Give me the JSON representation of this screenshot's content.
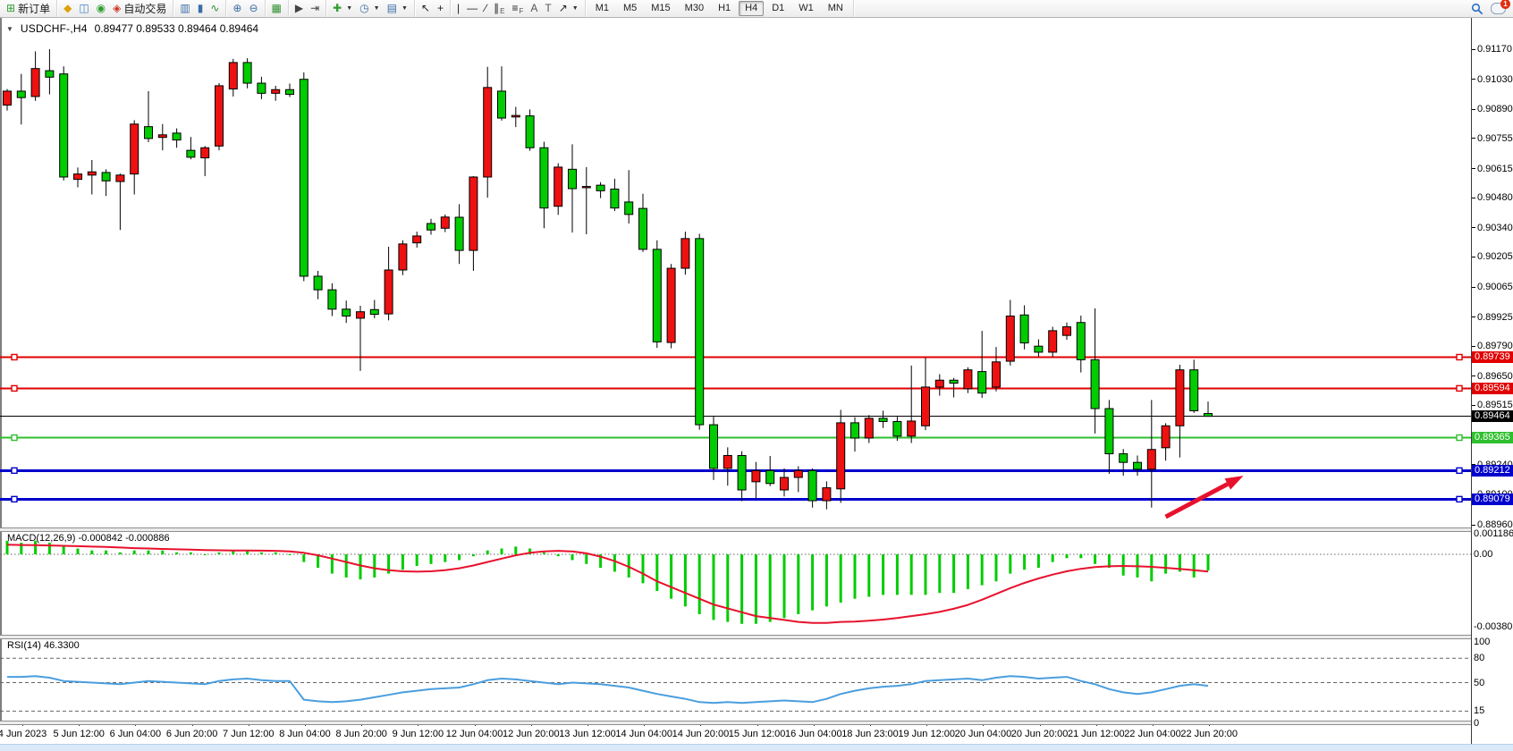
{
  "toolbar": {
    "groups": [
      {
        "name": "trade",
        "items": [
          {
            "name": "new-order-button",
            "icon": "new-order-icon",
            "glyph": "⊞",
            "color": "#2f9e2f",
            "label": "新订单"
          }
        ]
      },
      {
        "name": "terminal",
        "items": [
          {
            "name": "styles-button",
            "icon": "styles-icon",
            "glyph": "◆",
            "color": "#dca20a"
          },
          {
            "name": "profiles-button",
            "icon": "profiles-icon",
            "glyph": "◫",
            "color": "#3f7fbf"
          },
          {
            "name": "alerts-button",
            "icon": "signal-icon",
            "glyph": "◉",
            "color": "#2f9e2f"
          },
          {
            "name": "autotrading-button",
            "icon": "autotrading-icon",
            "glyph": "◈",
            "color": "#cc3322",
            "label": "自动交易"
          }
        ]
      },
      {
        "name": "chart-types",
        "items": [
          {
            "name": "bar-chart-button",
            "icon": "bar-chart-icon",
            "glyph": "▥",
            "color": "#3a6ea5"
          },
          {
            "name": "candlestick-chart-button",
            "icon": "candlestick-icon",
            "glyph": "▮",
            "color": "#3a6ea5"
          },
          {
            "name": "line-chart-button",
            "icon": "line-chart-icon",
            "glyph": "∿",
            "color": "#2f8f2f"
          }
        ]
      },
      {
        "name": "zoom",
        "items": [
          {
            "name": "zoom-in-button",
            "icon": "zoom-in-icon",
            "glyph": "⊕",
            "color": "#3a6ea5"
          },
          {
            "name": "zoom-out-button",
            "icon": "zoom-out-icon",
            "glyph": "⊖",
            "color": "#3a6ea5"
          }
        ]
      },
      {
        "name": "windows",
        "items": [
          {
            "name": "tile-windows-button",
            "icon": "tile-windows-icon",
            "glyph": "▦",
            "color": "#2f8f2f"
          }
        ]
      },
      {
        "name": "scroll",
        "items": [
          {
            "name": "auto-scroll-button",
            "icon": "auto-scroll-icon",
            "glyph": "▶",
            "color": "#444444"
          },
          {
            "name": "chart-shift-button",
            "icon": "chart-shift-icon",
            "glyph": "⇥",
            "color": "#444444"
          }
        ]
      },
      {
        "name": "objects",
        "items": [
          {
            "name": "indicators-button",
            "icon": "indicators-icon",
            "glyph": "✚",
            "color": "#2f9e2f",
            "caret": true
          },
          {
            "name": "periods-button",
            "icon": "clock-icon",
            "glyph": "◷",
            "color": "#3a6ea5",
            "caret": true
          },
          {
            "name": "templates-button",
            "icon": "template-icon",
            "glyph": "▤",
            "color": "#3a6ea5",
            "caret": true
          }
        ]
      },
      {
        "name": "cursors",
        "items": [
          {
            "name": "cursor-button",
            "icon": "cursor-icon",
            "glyph": "↖",
            "color": "#222222"
          },
          {
            "name": "crosshair-button",
            "icon": "crosshair-icon",
            "glyph": "+",
            "color": "#222222"
          }
        ]
      },
      {
        "name": "drawing",
        "items": [
          {
            "name": "vertical-line-button",
            "icon": "vertical-line-icon",
            "glyph": "|",
            "color": "#222222"
          },
          {
            "name": "horizontal-line-button",
            "icon": "horizontal-line-icon",
            "glyph": "—",
            "color": "#222222"
          },
          {
            "name": "trendline-button",
            "icon": "trendline-icon",
            "glyph": "∕",
            "color": "#222222"
          },
          {
            "name": "equidistant-channel-button",
            "icon": "channel-icon",
            "glyph": "∥",
            "color": "#222222",
            "sub": "E"
          },
          {
            "name": "fibonacci-button",
            "icon": "fibonacci-icon",
            "glyph": "≡",
            "color": "#222222",
            "sub": "F"
          },
          {
            "name": "text-button",
            "icon": "text-icon",
            "glyph": "A",
            "color": "#555555"
          },
          {
            "name": "label-button",
            "icon": "label-icon",
            "glyph": "T",
            "color": "#555555"
          },
          {
            "name": "arrows-menu-button",
            "icon": "arrows-icon",
            "glyph": "↗",
            "color": "#222222",
            "caret": true
          }
        ]
      }
    ],
    "timeframes": [
      "M1",
      "M5",
      "M15",
      "M30",
      "H1",
      "H4",
      "D1",
      "W1",
      "MN"
    ],
    "active_timeframe": "H4",
    "notifications_badge": "1"
  },
  "chart": {
    "collapse_arrow": "▼",
    "title": "USDCHF-,H4",
    "ohlc_display": "0.89477 0.89533 0.89464 0.89464"
  },
  "price_axis": {
    "ticks": [
      0.9117,
      0.9103,
      0.9089,
      0.90755,
      0.90615,
      0.9048,
      0.9034,
      0.90205,
      0.90065,
      0.89925,
      0.8979,
      0.8965,
      0.89515,
      0.8924,
      0.891,
      0.8896
    ],
    "badges": [
      {
        "text": "0.89739",
        "price": 0.89739,
        "bg": "#e00000"
      },
      {
        "text": "0.89594",
        "price": 0.89594,
        "bg": "#e00000"
      },
      {
        "text": "0.89464",
        "price": 0.89464,
        "bg": "#000000"
      },
      {
        "text": "0.89365",
        "price": 0.89365,
        "bg": "#2fbf2f"
      },
      {
        "text": "0.89212",
        "price": 0.89212,
        "bg": "#0000cc"
      },
      {
        "text": "0.89079",
        "price": 0.89079,
        "bg": "#0000cc"
      }
    ]
  },
  "macd_panel": {
    "label": "MACD(12,26,9)",
    "values_text": "-0.000842 -0.000886",
    "axis_max": "0.001186",
    "axis_zero": "0.00",
    "axis_min": "-0.003802"
  },
  "rsi_panel": {
    "label": "RSI(14)",
    "value_text": "46.3300",
    "levels": [
      100,
      80,
      50,
      15,
      0
    ],
    "dashed_levels": [
      80,
      50,
      15
    ]
  },
  "chart_data": {
    "type": "candlestick",
    "symbol": "USDCHF-",
    "timeframe": "H4",
    "price_top": 0.9117,
    "price_bottom": 0.8896,
    "up_color": "#ee1111",
    "down_color": "#00cc00",
    "time_labels": [
      "4 Jun 2023",
      "5 Jun 12:00",
      "6 Jun 04:00",
      "6 Jun 20:00",
      "7 Jun 12:00",
      "8 Jun 04:00",
      "8 Jun 20:00",
      "9 Jun 12:00",
      "12 Jun 04:00",
      "12 Jun 20:00",
      "13 Jun 12:00",
      "14 Jun 04:00",
      "14 Jun 20:00",
      "15 Jun 12:00",
      "16 Jun 04:00",
      "18 Jun 23:00",
      "19 Jun 12:00",
      "20 Jun 04:00",
      "20 Jun 20:00",
      "21 Jun 12:00",
      "22 Jun 04:00",
      "22 Jun 20:00"
    ],
    "candles": {
      "open": [
        0.9091,
        0.90975,
        0.9095,
        0.9107,
        0.91055,
        0.90565,
        0.90585,
        0.90597,
        0.90555,
        0.9059,
        0.9081,
        0.9076,
        0.9078,
        0.907,
        0.90665,
        0.9072,
        0.90985,
        0.91108,
        0.91012,
        0.90965,
        0.90982,
        0.9103,
        0.90115,
        0.90052,
        0.89962,
        0.8992,
        0.8996,
        0.8994,
        0.90144,
        0.9027,
        0.9036,
        0.90338,
        0.90389,
        0.90235,
        0.90576,
        0.90975,
        0.90855,
        0.9086,
        0.90712,
        0.9044,
        0.90612,
        0.9053,
        0.90538,
        0.9052,
        0.9046,
        0.9043,
        0.9024,
        0.89807,
        0.90152,
        0.9029,
        0.89425,
        0.89222,
        0.89282,
        0.8916,
        0.89212,
        0.89122,
        0.8918,
        0.89212,
        0.89072,
        0.89127,
        0.89434,
        0.89363,
        0.89455,
        0.8944,
        0.89372,
        0.8942,
        0.896,
        0.89632,
        0.89592,
        0.89672,
        0.896,
        0.8972,
        0.89935,
        0.8979,
        0.89762,
        0.8984,
        0.899,
        0.89727,
        0.895,
        0.8929,
        0.8925,
        0.89218,
        0.89318,
        0.8942,
        0.8968,
        0.89477
      ],
      "high": [
        0.90985,
        0.91055,
        0.9116,
        0.9117,
        0.9109,
        0.9062,
        0.90655,
        0.90612,
        0.90592,
        0.9084,
        0.90975,
        0.90822,
        0.90802,
        0.90762,
        0.9072,
        0.91012,
        0.91125,
        0.91128,
        0.91042,
        0.91,
        0.9101,
        0.91062,
        0.9014,
        0.90082,
        0.90002,
        0.89978,
        0.90005,
        0.90252,
        0.90282,
        0.90322,
        0.90382,
        0.90402,
        0.9045,
        0.9058,
        0.91088,
        0.9109,
        0.90902,
        0.9089,
        0.9074,
        0.9064,
        0.90728,
        0.90622,
        0.90552,
        0.90568,
        0.90608,
        0.90498,
        0.90282,
        0.90172,
        0.90322,
        0.90312,
        0.89462,
        0.8932,
        0.89302,
        0.89252,
        0.8928,
        0.89222,
        0.89232,
        0.89222,
        0.89162,
        0.89494,
        0.8946,
        0.8947,
        0.8949,
        0.89462,
        0.897,
        0.89737,
        0.8966,
        0.89642,
        0.89692,
        0.89861,
        0.89786,
        0.90005,
        0.8998,
        0.89822,
        0.8988,
        0.899,
        0.89932,
        0.89966,
        0.8954,
        0.89312,
        0.89282,
        0.8954,
        0.89432,
        0.89704,
        0.89727,
        0.89533
      ],
      "low": [
        0.90885,
        0.9082,
        0.9093,
        0.9096,
        0.9056,
        0.90528,
        0.90495,
        0.90488,
        0.9033,
        0.90495,
        0.90738,
        0.907,
        0.90712,
        0.90658,
        0.9058,
        0.907,
        0.9095,
        0.90988,
        0.90938,
        0.9093,
        0.90948,
        0.90092,
        0.90008,
        0.8993,
        0.89898,
        0.89675,
        0.8992,
        0.8991,
        0.9012,
        0.90248,
        0.90308,
        0.9032,
        0.90172,
        0.9014,
        0.9048,
        0.90838,
        0.90808,
        0.90698,
        0.90338,
        0.904,
        0.90318,
        0.9031,
        0.90478,
        0.90418,
        0.9036,
        0.90228,
        0.89782,
        0.8978,
        0.90122,
        0.89402,
        0.89168,
        0.89142,
        0.8907,
        0.89082,
        0.8914,
        0.89092,
        0.89112,
        0.8904,
        0.89032,
        0.89062,
        0.893,
        0.8934,
        0.8941,
        0.8935,
        0.8934,
        0.894,
        0.8956,
        0.89552,
        0.89572,
        0.8955,
        0.8958,
        0.897,
        0.89775,
        0.89742,
        0.8974,
        0.8982,
        0.89668,
        0.89384,
        0.89197,
        0.89188,
        0.89188,
        0.8904,
        0.89258,
        0.89273,
        0.8948,
        0.89464
      ],
      "close": [
        0.90975,
        0.90945,
        0.9108,
        0.9104,
        0.90576,
        0.9059,
        0.906,
        0.90558,
        0.90585,
        0.90822,
        0.90755,
        0.90772,
        0.90748,
        0.90668,
        0.90712,
        0.91,
        0.91108,
        0.91012,
        0.90965,
        0.90982,
        0.9096,
        0.90115,
        0.90052,
        0.89962,
        0.8993,
        0.8995,
        0.89938,
        0.90144,
        0.90265,
        0.90302,
        0.9033,
        0.9039,
        0.90235,
        0.90576,
        0.90992,
        0.9085,
        0.90862,
        0.90712,
        0.90432,
        0.90622,
        0.90522,
        0.90532,
        0.90512,
        0.90432,
        0.90402,
        0.9024,
        0.8981,
        0.90152,
        0.9029,
        0.89425,
        0.89222,
        0.89282,
        0.89122,
        0.89212,
        0.89152,
        0.8918,
        0.89212,
        0.89072,
        0.89132,
        0.89434,
        0.89363,
        0.89455,
        0.8944,
        0.89372,
        0.89442,
        0.896,
        0.89632,
        0.89618,
        0.8968,
        0.89572,
        0.89717,
        0.8993,
        0.89805,
        0.89762,
        0.89862,
        0.8988,
        0.89727,
        0.895,
        0.8929,
        0.8925,
        0.89218,
        0.8931,
        0.8942,
        0.8968,
        0.8949,
        0.89464
      ]
    },
    "horizontal_lines": [
      {
        "price": 0.89739,
        "color": "#e00000",
        "width": 2,
        "handles": true
      },
      {
        "price": 0.89594,
        "color": "#e00000",
        "width": 2,
        "handles": true
      },
      {
        "price": 0.89464,
        "color": "#000000",
        "width": 1,
        "handles": false
      },
      {
        "price": 0.89365,
        "color": "#2fbf2f",
        "width": 2,
        "handles": true
      },
      {
        "price": 0.89212,
        "color": "#0000cc",
        "width": 3,
        "handles": true
      },
      {
        "price": 0.89079,
        "color": "#0000cc",
        "width": 3,
        "handles": true
      }
    ],
    "annotation_arrow": {
      "color": "#e8112d",
      "from_price": 0.88997,
      "to_price": 0.89188,
      "from_index": 82,
      "to_index": 87.5
    },
    "macd": {
      "histogram": [
        0.0007,
        0.0006,
        0.0007,
        0.0006,
        0.0004,
        0.0003,
        0.0002,
        0.0002,
        0.0001,
        0.0002,
        0.0002,
        0.0002,
        0.0001,
        0.0001,
        0.0,
        0.0001,
        0.0002,
        0.0002,
        0.0001,
        0.0001,
        0.0,
        -0.0004,
        -0.0007,
        -0.001,
        -0.0012,
        -0.0013,
        -0.0012,
        -0.001,
        -0.0008,
        -0.0006,
        -0.0005,
        -0.0004,
        -0.0003,
        -0.0001,
        0.0002,
        0.0003,
        0.0004,
        0.0003,
        0.0001,
        -0.0001,
        -0.0003,
        -0.0005,
        -0.0007,
        -0.0009,
        -0.0012,
        -0.0015,
        -0.0019,
        -0.0023,
        -0.0027,
        -0.0031,
        -0.0034,
        -0.0035,
        -0.0036,
        -0.0036,
        -0.0035,
        -0.0033,
        -0.0031,
        -0.0029,
        -0.0027,
        -0.0025,
        -0.0023,
        -0.0022,
        -0.0021,
        -0.0021,
        -0.0021,
        -0.0021,
        -0.002,
        -0.002,
        -0.0018,
        -0.0016,
        -0.0014,
        -0.001,
        -0.0008,
        -0.0007,
        -0.0004,
        -0.0002,
        -0.0002,
        -0.0005,
        -0.0007,
        -0.0011,
        -0.0012,
        -0.0014,
        -0.001,
        -0.0009,
        -0.0012,
        -0.00084
      ],
      "signal": [
        0.0005,
        0.00048,
        0.00047,
        0.00046,
        0.00044,
        0.00042,
        0.0004,
        0.00038,
        0.00035,
        0.00032,
        0.0003,
        0.00028,
        0.00026,
        0.00024,
        0.00022,
        0.00021,
        0.0002,
        0.0002,
        0.00019,
        0.00018,
        0.00015,
        8e-05,
        -5e-05,
        -0.00022,
        -0.0004,
        -0.00058,
        -0.00072,
        -0.00082,
        -0.00088,
        -0.0009,
        -0.00088,
        -0.00082,
        -0.00072,
        -0.00058,
        -0.0004,
        -0.00022,
        -5e-05,
        8e-05,
        0.00015,
        0.00018,
        0.00015,
        5e-05,
        -0.00012,
        -0.00035,
        -0.00065,
        -0.001,
        -0.0014,
        -0.0017,
        -0.002,
        -0.0023,
        -0.0026,
        -0.0028,
        -0.003,
        -0.0032,
        -0.0033,
        -0.0034,
        -0.0035,
        -0.00355,
        -0.00355,
        -0.0035,
        -0.00348,
        -0.00344,
        -0.00338,
        -0.0033,
        -0.0032,
        -0.0031,
        -0.00298,
        -0.00282,
        -0.00262,
        -0.00235,
        -0.00205,
        -0.00175,
        -0.00148,
        -0.00125,
        -0.00105,
        -0.00088,
        -0.00075,
        -0.00066,
        -0.00062,
        -0.0006,
        -0.00062,
        -0.00065,
        -0.0007,
        -0.00076,
        -0.00082,
        -0.00089
      ],
      "scale_max": 0.001186,
      "scale_min": -0.003802
    },
    "rsi": {
      "values": [
        57,
        57,
        58,
        56,
        52,
        51,
        50,
        49,
        48,
        50,
        52,
        51,
        50,
        49,
        48,
        52,
        54,
        55,
        53,
        52,
        52,
        29,
        27,
        26,
        27,
        29,
        32,
        35,
        38,
        40,
        42,
        43,
        44,
        48,
        53,
        55,
        54,
        52,
        50,
        48,
        50,
        49,
        48,
        46,
        44,
        40,
        36,
        33,
        30,
        26,
        25,
        26,
        25,
        26,
        27,
        28,
        27,
        26,
        30,
        36,
        40,
        43,
        45,
        46,
        48,
        52,
        53,
        54,
        55,
        53,
        56,
        58,
        57,
        55,
        56,
        57,
        52,
        48,
        42,
        38,
        36,
        38,
        42,
        46,
        48,
        46
      ],
      "current": 46.33
    }
  },
  "colors": {
    "macd_histogram": "#00cc00",
    "macd_signal": "#e8112d",
    "rsi_line": "#4a9ede",
    "level_dash": "#666666",
    "hline_blue": "#0000cc",
    "hline_red": "#e00000",
    "hline_green": "#2fbf2f"
  }
}
